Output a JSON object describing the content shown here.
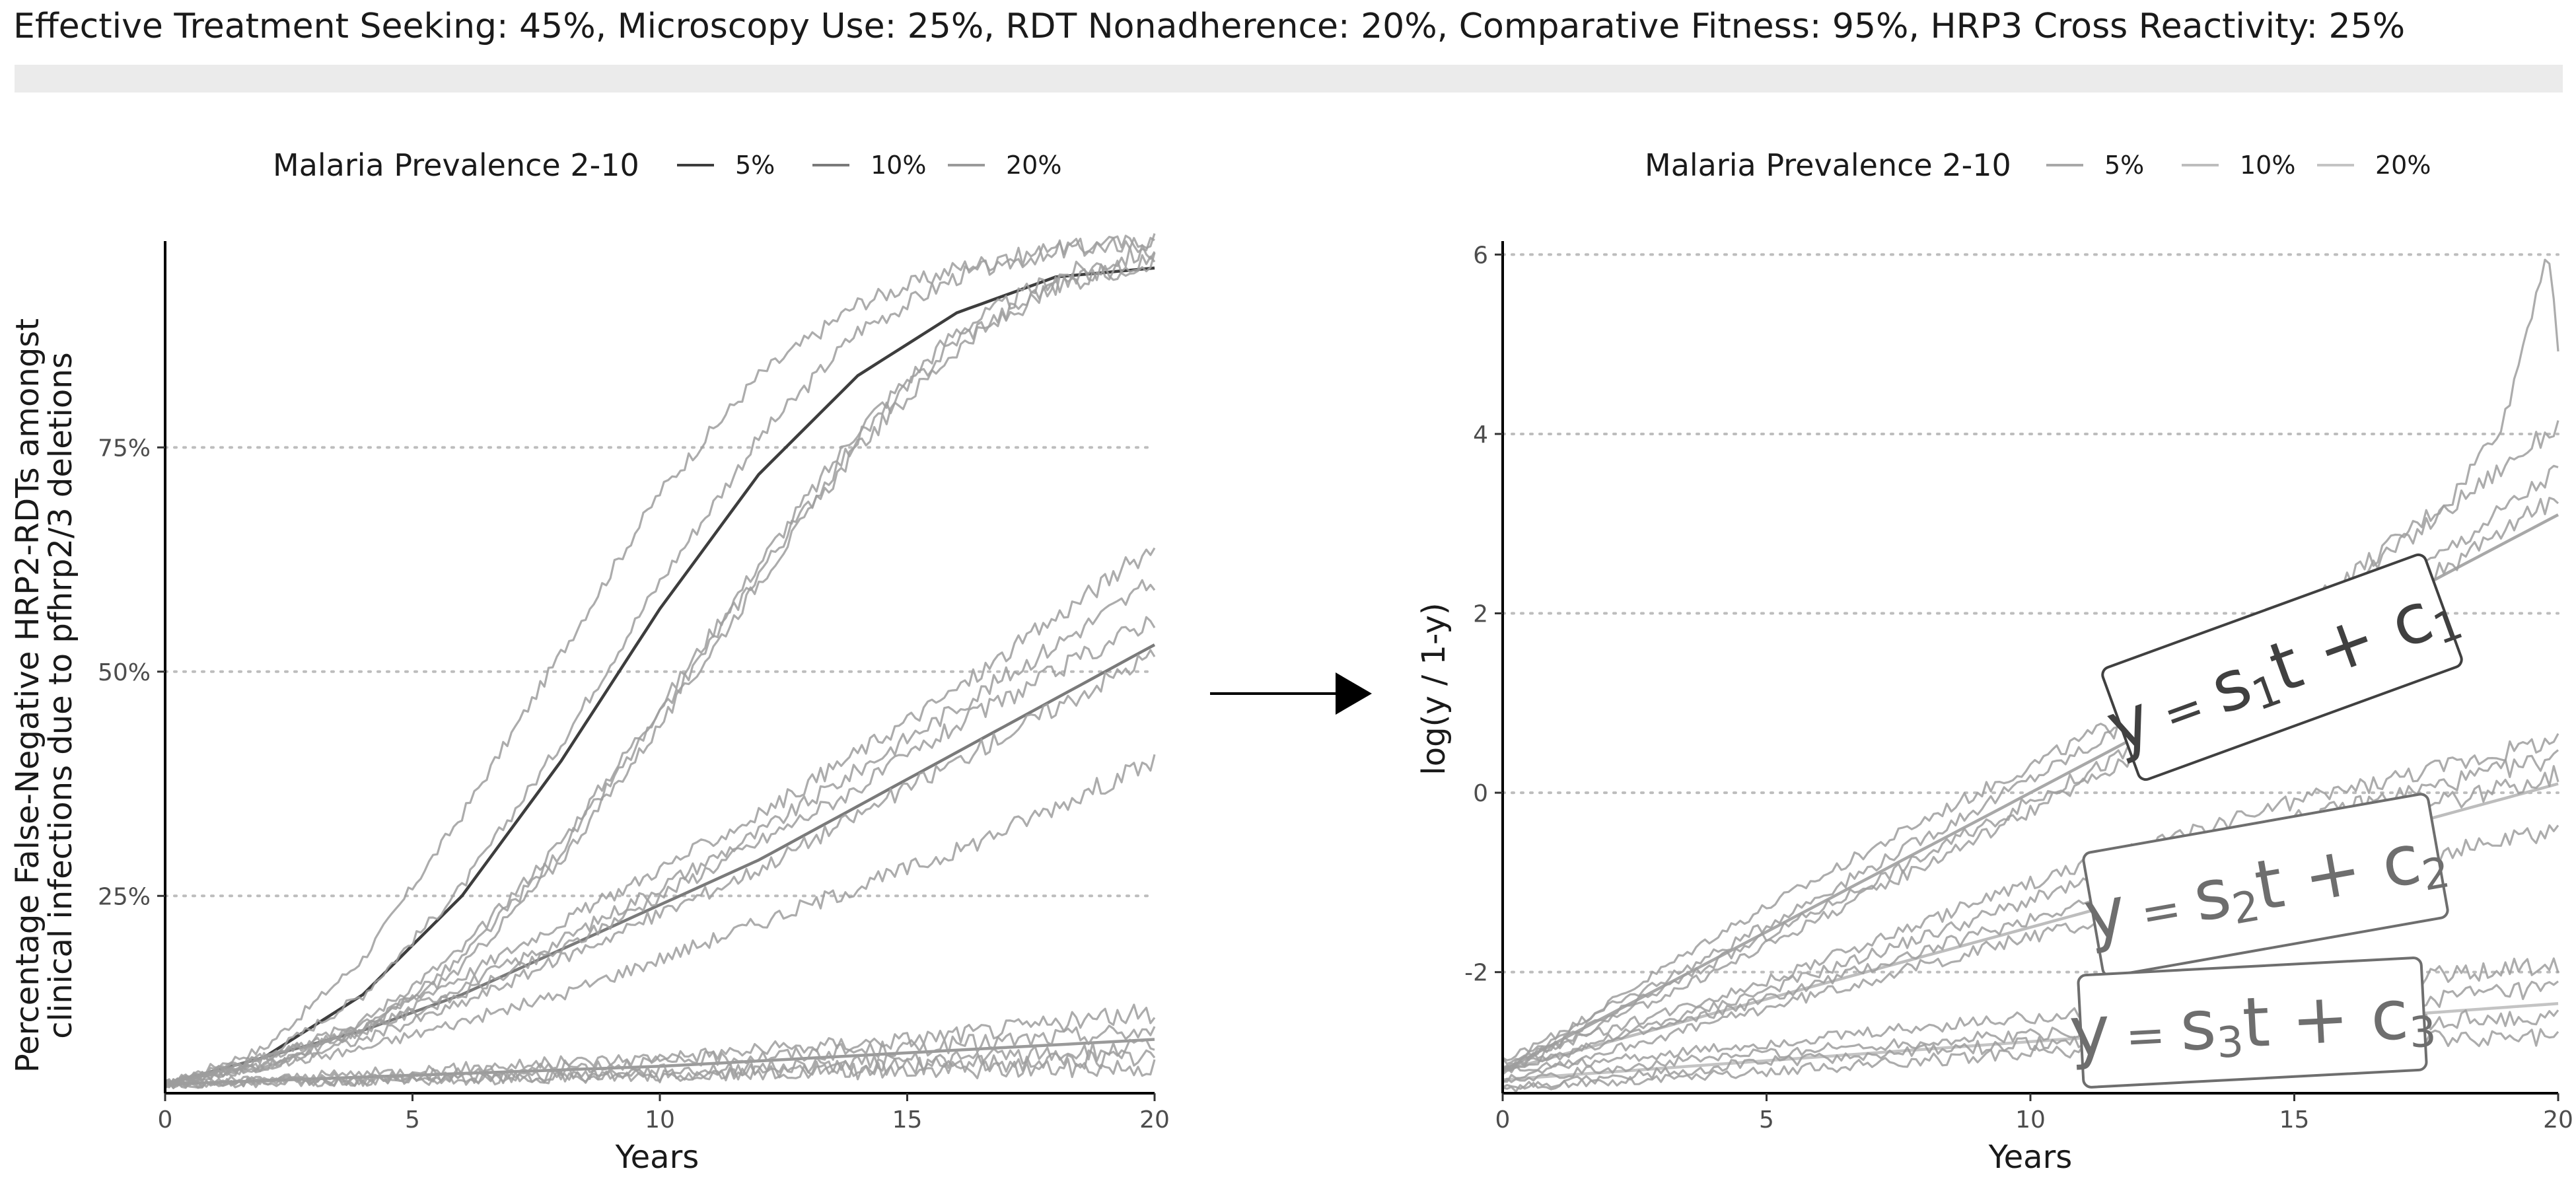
{
  "header": {
    "title": "Effective Treatment Seeking: 45%, Microscopy Use: 25%, RDT Nonadherence: 20%, Comparative Fitness: 95%, HRP3 Cross Reactivity: 25%"
  },
  "chart_data": [
    {
      "type": "line",
      "xlabel": "Years",
      "ylabel_lines": [
        "Percentage False-Negative HRP2-RDTs amongst",
        "clinical infections due to pfhrp2/3 deletions"
      ],
      "xlim": [
        0,
        20
      ],
      "ylim": [
        0.03,
        0.98
      ],
      "x_ticks": [
        0,
        5,
        10,
        15,
        20
      ],
      "y_ticks": [
        0.25,
        0.5,
        0.75
      ],
      "y_tick_labels": [
        "25%",
        "50%",
        "75%"
      ],
      "grid": "horizontal dotted",
      "legend": {
        "title": "Malaria Prevalence 2-10",
        "placement": "top",
        "entries": [
          "5%",
          "10%",
          "20%"
        ],
        "colors": [
          "#3d3d3d",
          "#7a7a7a",
          "#9a9a9a"
        ]
      },
      "series": [
        {
          "name": "5%",
          "role": "fit",
          "x": [
            0,
            2,
            4,
            6,
            8,
            10,
            12,
            14,
            16,
            18,
            20
          ],
          "y": [
            0.04,
            0.07,
            0.14,
            0.25,
            0.4,
            0.57,
            0.72,
            0.83,
            0.9,
            0.94,
            0.95
          ]
        },
        {
          "name": "10%",
          "role": "fit",
          "x": [
            0,
            2,
            4,
            6,
            8,
            10,
            12,
            14,
            16,
            18,
            20
          ],
          "y": [
            0.04,
            0.07,
            0.1,
            0.14,
            0.19,
            0.24,
            0.29,
            0.35,
            0.41,
            0.47,
            0.53
          ]
        },
        {
          "name": "20%",
          "role": "fit",
          "x": [
            0,
            5,
            10,
            15,
            20
          ],
          "y": [
            0.04,
            0.05,
            0.06,
            0.075,
            0.09
          ]
        },
        {
          "name": "5%",
          "role": "simulation",
          "x": [
            0,
            2,
            4,
            6,
            8,
            10,
            12,
            14,
            16,
            18,
            20
          ],
          "y": [
            0.04,
            0.08,
            0.18,
            0.34,
            0.52,
            0.7,
            0.83,
            0.91,
            0.95,
            0.97,
            0.98
          ]
        },
        {
          "name": "5%",
          "role": "simulation",
          "x": [
            0,
            2,
            4,
            6,
            8,
            10,
            12,
            14,
            16,
            18,
            20
          ],
          "y": [
            0.04,
            0.07,
            0.14,
            0.26,
            0.42,
            0.6,
            0.76,
            0.88,
            0.94,
            0.97,
            0.98
          ]
        },
        {
          "name": "5%",
          "role": "simulation",
          "x": [
            0,
            2,
            4,
            6,
            8,
            10,
            12,
            14,
            16,
            18,
            20
          ],
          "y": [
            0.04,
            0.06,
            0.11,
            0.19,
            0.31,
            0.46,
            0.62,
            0.77,
            0.88,
            0.94,
            0.97
          ]
        },
        {
          "name": "5%",
          "role": "simulation",
          "x": [
            0,
            2,
            4,
            6,
            8,
            10,
            12,
            14,
            16,
            18,
            20
          ],
          "y": [
            0.04,
            0.06,
            0.1,
            0.18,
            0.3,
            0.45,
            0.61,
            0.76,
            0.87,
            0.93,
            0.96
          ]
        },
        {
          "name": "5%",
          "role": "simulation",
          "x": [
            0,
            2,
            4,
            6,
            8,
            10,
            12,
            14,
            16,
            18,
            20
          ],
          "y": [
            0.04,
            0.06,
            0.1,
            0.17,
            0.29,
            0.44,
            0.6,
            0.75,
            0.86,
            0.93,
            0.96
          ]
        },
        {
          "name": "10%",
          "role": "simulation",
          "x": [
            0,
            2,
            4,
            6,
            8,
            10,
            12,
            14,
            16,
            18,
            20
          ],
          "y": [
            0.04,
            0.07,
            0.11,
            0.16,
            0.22,
            0.28,
            0.34,
            0.41,
            0.48,
            0.56,
            0.64
          ]
        },
        {
          "name": "10%",
          "role": "simulation",
          "x": [
            0,
            2,
            4,
            6,
            8,
            10,
            12,
            14,
            16,
            18,
            20
          ],
          "y": [
            0.04,
            0.07,
            0.1,
            0.15,
            0.2,
            0.26,
            0.32,
            0.39,
            0.46,
            0.53,
            0.6
          ]
        },
        {
          "name": "10%",
          "role": "simulation",
          "x": [
            0,
            2,
            4,
            6,
            8,
            10,
            12,
            14,
            16,
            18,
            20
          ],
          "y": [
            0.04,
            0.07,
            0.1,
            0.14,
            0.19,
            0.25,
            0.31,
            0.37,
            0.44,
            0.5,
            0.56
          ]
        },
        {
          "name": "10%",
          "role": "simulation",
          "x": [
            0,
            2,
            4,
            6,
            8,
            10,
            12,
            14,
            16,
            18,
            20
          ],
          "y": [
            0.04,
            0.06,
            0.09,
            0.13,
            0.18,
            0.23,
            0.28,
            0.34,
            0.4,
            0.46,
            0.52
          ]
        },
        {
          "name": "10%",
          "role": "simulation",
          "x": [
            0,
            2,
            4,
            6,
            8,
            10,
            12,
            14,
            16,
            18,
            20
          ],
          "y": [
            0.04,
            0.06,
            0.08,
            0.11,
            0.14,
            0.18,
            0.22,
            0.26,
            0.3,
            0.35,
            0.4
          ]
        },
        {
          "name": "20%",
          "role": "simulation",
          "x": [
            0,
            5,
            10,
            15,
            20
          ],
          "y": [
            0.04,
            0.055,
            0.07,
            0.09,
            0.12
          ]
        },
        {
          "name": "20%",
          "role": "simulation",
          "x": [
            0,
            5,
            10,
            15,
            20
          ],
          "y": [
            0.04,
            0.05,
            0.065,
            0.08,
            0.1
          ]
        },
        {
          "name": "20%",
          "role": "simulation",
          "x": [
            0,
            5,
            10,
            15,
            20
          ],
          "y": [
            0.04,
            0.045,
            0.055,
            0.065,
            0.08
          ]
        },
        {
          "name": "20%",
          "role": "simulation",
          "x": [
            0,
            5,
            10,
            15,
            20
          ],
          "y": [
            0.04,
            0.045,
            0.05,
            0.06,
            0.07
          ]
        },
        {
          "name": "20%",
          "role": "simulation",
          "x": [
            0,
            5,
            10,
            15,
            20
          ],
          "y": [
            0.04,
            0.045,
            0.05,
            0.055,
            0.06
          ]
        }
      ]
    },
    {
      "type": "line",
      "xlabel": "Years",
      "ylabel": "log(y / 1-y)",
      "xlim": [
        0,
        20
      ],
      "ylim": [
        -3.35,
        6.15
      ],
      "x_ticks": [
        0,
        5,
        10,
        15,
        20
      ],
      "y_ticks": [
        -2,
        0,
        2,
        4,
        6
      ],
      "grid": "horizontal dotted",
      "legend": {
        "title": "Malaria Prevalence 2-10",
        "placement": "top",
        "entries": [
          "5%",
          "10%",
          "20%"
        ],
        "colors": [
          "#a8a8a8",
          "#bdbdbd",
          "#c4c4c4"
        ]
      },
      "annotations": [
        {
          "s": "s",
          "i": "1",
          "label": "y = s1t + c1",
          "color": "#404040"
        },
        {
          "s": "s",
          "i": "2",
          "label": "y = s2t + c2",
          "color": "#6e6e6e"
        },
        {
          "s": "s",
          "i": "3",
          "label": "y = s3t + c3",
          "color": "#6e6e6e"
        }
      ],
      "series": [
        {
          "name": "5%",
          "role": "fit",
          "x": [
            0,
            20
          ],
          "y": [
            -3.1,
            3.1
          ]
        },
        {
          "name": "10%",
          "role": "fit",
          "x": [
            0,
            20
          ],
          "y": [
            -3.1,
            0.1
          ]
        },
        {
          "name": "20%",
          "role": "fit",
          "x": [
            0,
            20
          ],
          "y": [
            -3.2,
            -2.35
          ]
        },
        {
          "name": "5%",
          "role": "simulation",
          "x": [
            0,
            4,
            8,
            12,
            16,
            18,
            19,
            19.8,
            20
          ],
          "y": [
            -3.1,
            -1.6,
            -0.3,
            0.9,
            2.4,
            3.3,
            4.2,
            6.1,
            4.9
          ]
        },
        {
          "name": "5%",
          "role": "simulation",
          "x": [
            0,
            4,
            8,
            12,
            16,
            20
          ],
          "y": [
            -3.0,
            -1.8,
            -0.5,
            0.8,
            2.3,
            4.1
          ]
        },
        {
          "name": "5%",
          "role": "simulation",
          "x": [
            0,
            4,
            8,
            12,
            16,
            20
          ],
          "y": [
            -3.1,
            -1.9,
            -0.7,
            0.5,
            1.9,
            3.6
          ]
        },
        {
          "name": "5%",
          "role": "simulation",
          "x": [
            0,
            4,
            8,
            12,
            16,
            20
          ],
          "y": [
            -3.1,
            -2.0,
            -0.8,
            0.4,
            1.8,
            3.3
          ]
        },
        {
          "name": "10%",
          "role": "simulation",
          "x": [
            0,
            5,
            10,
            15,
            20
          ],
          "y": [
            -3.0,
            -2.1,
            -1.0,
            -0.1,
            0.6
          ]
        },
        {
          "name": "10%",
          "role": "simulation",
          "x": [
            0,
            5,
            10,
            15,
            20
          ],
          "y": [
            -3.1,
            -2.2,
            -1.2,
            -0.3,
            0.4
          ]
        },
        {
          "name": "10%",
          "role": "simulation",
          "x": [
            0,
            5,
            10,
            15,
            20
          ],
          "y": [
            -3.1,
            -2.3,
            -1.4,
            -0.5,
            0.2
          ]
        },
        {
          "name": "10%",
          "role": "simulation",
          "x": [
            0,
            5,
            10,
            15,
            20
          ],
          "y": [
            -3.2,
            -2.4,
            -1.6,
            -1.0,
            -0.4
          ]
        },
        {
          "name": "20%",
          "role": "simulation",
          "x": [
            0,
            5,
            10,
            15,
            20
          ],
          "y": [
            -3.1,
            -2.8,
            -2.5,
            -2.2,
            -1.9
          ]
        },
        {
          "name": "20%",
          "role": "simulation",
          "x": [
            0,
            5,
            10,
            15,
            20
          ],
          "y": [
            -3.2,
            -2.9,
            -2.7,
            -2.4,
            -2.2
          ]
        },
        {
          "name": "20%",
          "role": "simulation",
          "x": [
            0,
            5,
            10,
            15,
            20
          ],
          "y": [
            -3.3,
            -3.0,
            -2.8,
            -2.6,
            -2.5
          ]
        },
        {
          "name": "20%",
          "role": "simulation",
          "x": [
            0,
            5,
            10,
            15,
            20
          ],
          "y": [
            -3.3,
            -3.1,
            -2.9,
            -2.8,
            -2.7
          ]
        }
      ]
    }
  ]
}
